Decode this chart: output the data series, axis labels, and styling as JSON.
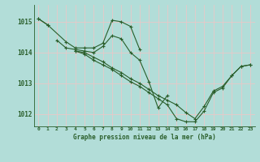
{
  "title": "Graphe pression niveau de la mer (hPa)",
  "bg_color": "#b2ddd8",
  "grid_color": "#e8c8c8",
  "line_color": "#2a5e2a",
  "x_ticks": [
    0,
    1,
    2,
    3,
    4,
    5,
    6,
    7,
    8,
    9,
    10,
    11,
    12,
    13,
    14,
    15,
    16,
    17,
    18,
    19,
    20,
    21,
    22,
    23
  ],
  "ylim": [
    1011.6,
    1015.55
  ],
  "yticks": [
    1012,
    1013,
    1014,
    1015
  ],
  "series": [
    [
      1015.1,
      1014.9,
      null,
      null,
      null,
      null,
      null,
      null,
      null,
      null,
      null,
      null,
      null,
      null,
      null,
      null,
      null,
      null,
      null,
      null,
      null,
      null,
      null,
      null
    ],
    [
      1015.1,
      1014.9,
      null,
      1014.35,
      1014.15,
      1014.15,
      1014.15,
      1014.3,
      1015.05,
      1015.0,
      1014.85,
      1014.1,
      null,
      null,
      null,
      null,
      null,
      null,
      null,
      null,
      null,
      null,
      null,
      null
    ],
    [
      null,
      null,
      1014.4,
      1014.15,
      1014.1,
      1014.05,
      1014.0,
      1014.2,
      1014.55,
      1014.45,
      1014.0,
      1013.75,
      1013.05,
      1012.2,
      1012.6,
      null,
      null,
      null,
      null,
      null,
      null,
      null,
      null,
      null
    ],
    [
      null,
      null,
      null,
      null,
      1014.05,
      1014.0,
      1013.85,
      1013.7,
      1013.5,
      1013.35,
      1013.15,
      1013.0,
      1012.8,
      1012.6,
      1012.45,
      1012.3,
      1012.05,
      1011.85,
      1012.25,
      1012.75,
      1012.9,
      1013.25,
      1013.55,
      1013.6
    ],
    [
      null,
      null,
      null,
      null,
      1014.05,
      1013.95,
      1013.75,
      1013.6,
      1013.45,
      1013.25,
      1013.05,
      1012.9,
      1012.7,
      1012.5,
      1012.3,
      1011.85,
      1011.75,
      1011.75,
      1012.1,
      1012.7,
      1012.85,
      1013.25,
      1013.55,
      1013.6
    ]
  ]
}
